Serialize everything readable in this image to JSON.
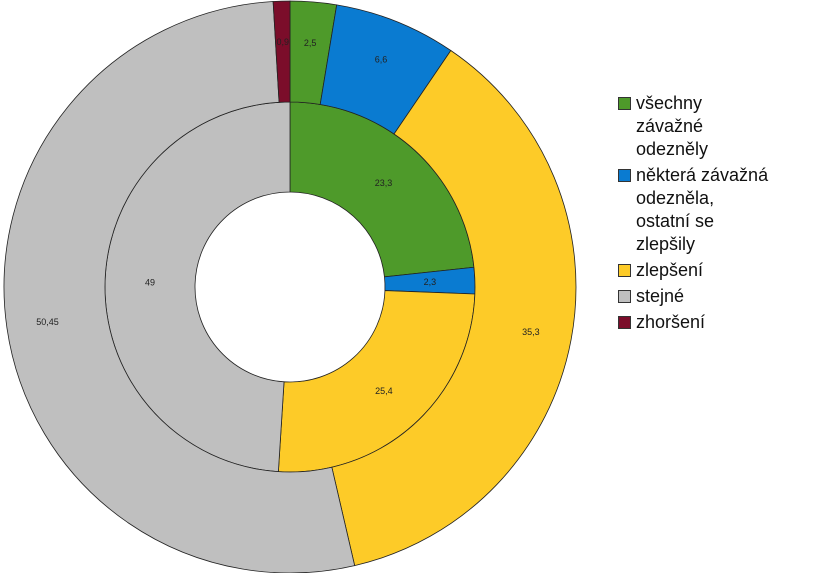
{
  "chart_data": {
    "type": "pie",
    "variant": "nested-donut",
    "legend_position": "right",
    "categories": [
      "všechny\nzávažné\nodezněly",
      "některá závažná\nodezněla,\nostatní se\nzlepšily",
      "zlepšení",
      "stejné",
      "zhoršení"
    ],
    "colors": [
      "#4e9a2a",
      "#0a7bd1",
      "#fdcb28",
      "#bfbfbf",
      "#7b0d2a"
    ],
    "series": [
      {
        "ring": "inner",
        "values": [
          23.3,
          2.3,
          25.4,
          49,
          0
        ]
      },
      {
        "ring": "outer",
        "values": [
          2.5,
          6.6,
          35.3,
          50.45,
          0.9
        ]
      }
    ],
    "value_labels": {
      "inner": [
        "23,3",
        "2,3",
        "25,4",
        "49",
        ""
      ],
      "outer": [
        "2,5",
        "6,6",
        "35,3",
        "50,45",
        "0,9"
      ]
    }
  }
}
